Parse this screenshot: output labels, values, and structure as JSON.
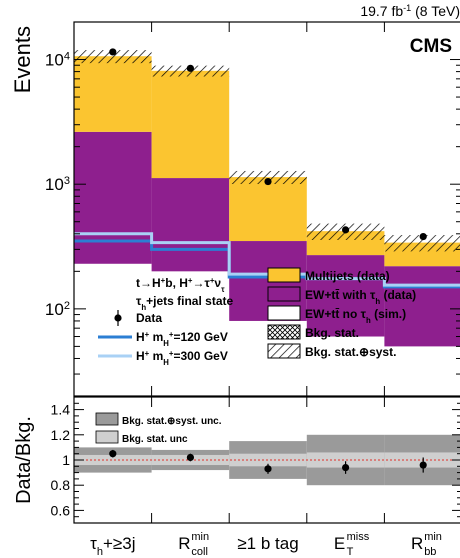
{
  "chart_data": [
    {
      "type": "bar",
      "stacked": true,
      "log_y": true,
      "ylabel": "Events",
      "ylim": [
        20,
        20000
      ],
      "y_ticks": [
        {
          "v": 10,
          "label": "10"
        },
        {
          "v": 100,
          "label": "10",
          "sup": "2"
        },
        {
          "v": 1000,
          "label": "10",
          "sup": "3"
        },
        {
          "v": 10000,
          "label": "10",
          "sup": "4"
        }
      ],
      "lumi": {
        "text": "19.7 fb",
        "sup": "-1",
        "tail": " (8 TeV)"
      },
      "experiment": "CMS",
      "title_lines": [
        {
          "text": "t→H",
          "sup": "+",
          "rest": "b, H",
          "sup2": "+",
          "rest2": "→τ",
          "sup3": "+",
          "rest3": "ν",
          "sub": "τ"
        },
        {
          "text": "τ",
          "sub": "h",
          "rest": "+jets final state"
        }
      ],
      "categories": [
        "τh+≥3j",
        "Rcoll min",
        "≥1 b tag",
        "ET miss",
        "Rbb min"
      ],
      "series": [
        {
          "name": "EW+tt̄ no τh (sim.)",
          "color": "#ffffff",
          "values": [
            230,
            200,
            80,
            60,
            50
          ]
        },
        {
          "name": "EW+tt̄ with τh (data)",
          "color": "#8e1f8e",
          "values": [
            2400,
            920,
            270,
            210,
            170
          ]
        },
        {
          "name": "Multijets (data)",
          "color": "#fbc530",
          "values": [
            8000,
            7000,
            790,
            150,
            120
          ]
        }
      ],
      "band_fraction": [
        0.12,
        0.1,
        0.12,
        0.15,
        0.15
      ],
      "data_points": [
        11500,
        8500,
        1050,
        430,
        380
      ],
      "signals": [
        {
          "name": "H+ mH+=120 GeV",
          "color": "#2b7ed3",
          "values": [
            350,
            300,
            180,
            175,
            150
          ]
        },
        {
          "name": "H+ mH+=300 GeV",
          "color": "#a9d1f5",
          "values": [
            400,
            340,
            190,
            175,
            155
          ]
        }
      ],
      "legend": {
        "left": [
          {
            "kind": "point",
            "label": "Data"
          },
          {
            "kind": "line",
            "color": "#2b7ed3",
            "label": "H",
            "sup": "+",
            "mid": " m",
            "sub": "H",
            "subsup": "+",
            "tail": "=120 GeV"
          },
          {
            "kind": "line",
            "color": "#a9d1f5",
            "label": "H",
            "sup": "+",
            "mid": " m",
            "sub": "H",
            "subsup": "+",
            "tail": "=300 GeV"
          }
        ],
        "right": [
          {
            "kind": "box",
            "color": "#fbc530",
            "label": "Multijets (data)"
          },
          {
            "kind": "box",
            "color": "#8e1f8e",
            "label": "EW+tt̄ with τ",
            "sub": "h",
            "tail": " (data)"
          },
          {
            "kind": "box",
            "color": "#ffffff",
            "label": "EW+tt̄ no τ",
            "sub": "h",
            "tail": " (sim.)"
          },
          {
            "kind": "cross",
            "label": "Bkg. stat."
          },
          {
            "kind": "hatch",
            "label": "Bkg. stat.⊕syst."
          }
        ]
      }
    },
    {
      "type": "scatter",
      "ylabel": "Data/Bkg.",
      "ylim": [
        0.5,
        1.5
      ],
      "y_ticks": [
        0.6,
        0.8,
        1,
        1.2,
        1.4
      ],
      "ratio_values": [
        1.05,
        1.02,
        0.93,
        0.94,
        0.96
      ],
      "ratio_errors": [
        0.03,
        0.03,
        0.04,
        0.05,
        0.06
      ],
      "stat_unc": [
        0.04,
        0.04,
        0.05,
        0.06,
        0.06
      ],
      "tot_unc": [
        0.1,
        0.08,
        0.15,
        0.2,
        0.2
      ],
      "legend": [
        "Bkg. stat.⊕syst. unc.",
        "Bkg. stat. unc"
      ],
      "x_tick_labels": [
        {
          "base": "τ",
          "sub": "h",
          "tail": "+≥3j"
        },
        {
          "base": "R",
          "sup": "min",
          "sub": "coll"
        },
        {
          "base": "≥1 b tag"
        },
        {
          "base": "E",
          "sup": "miss",
          "sub": "T"
        },
        {
          "base": "R",
          "sup": "min",
          "sub": "bb"
        }
      ]
    }
  ]
}
